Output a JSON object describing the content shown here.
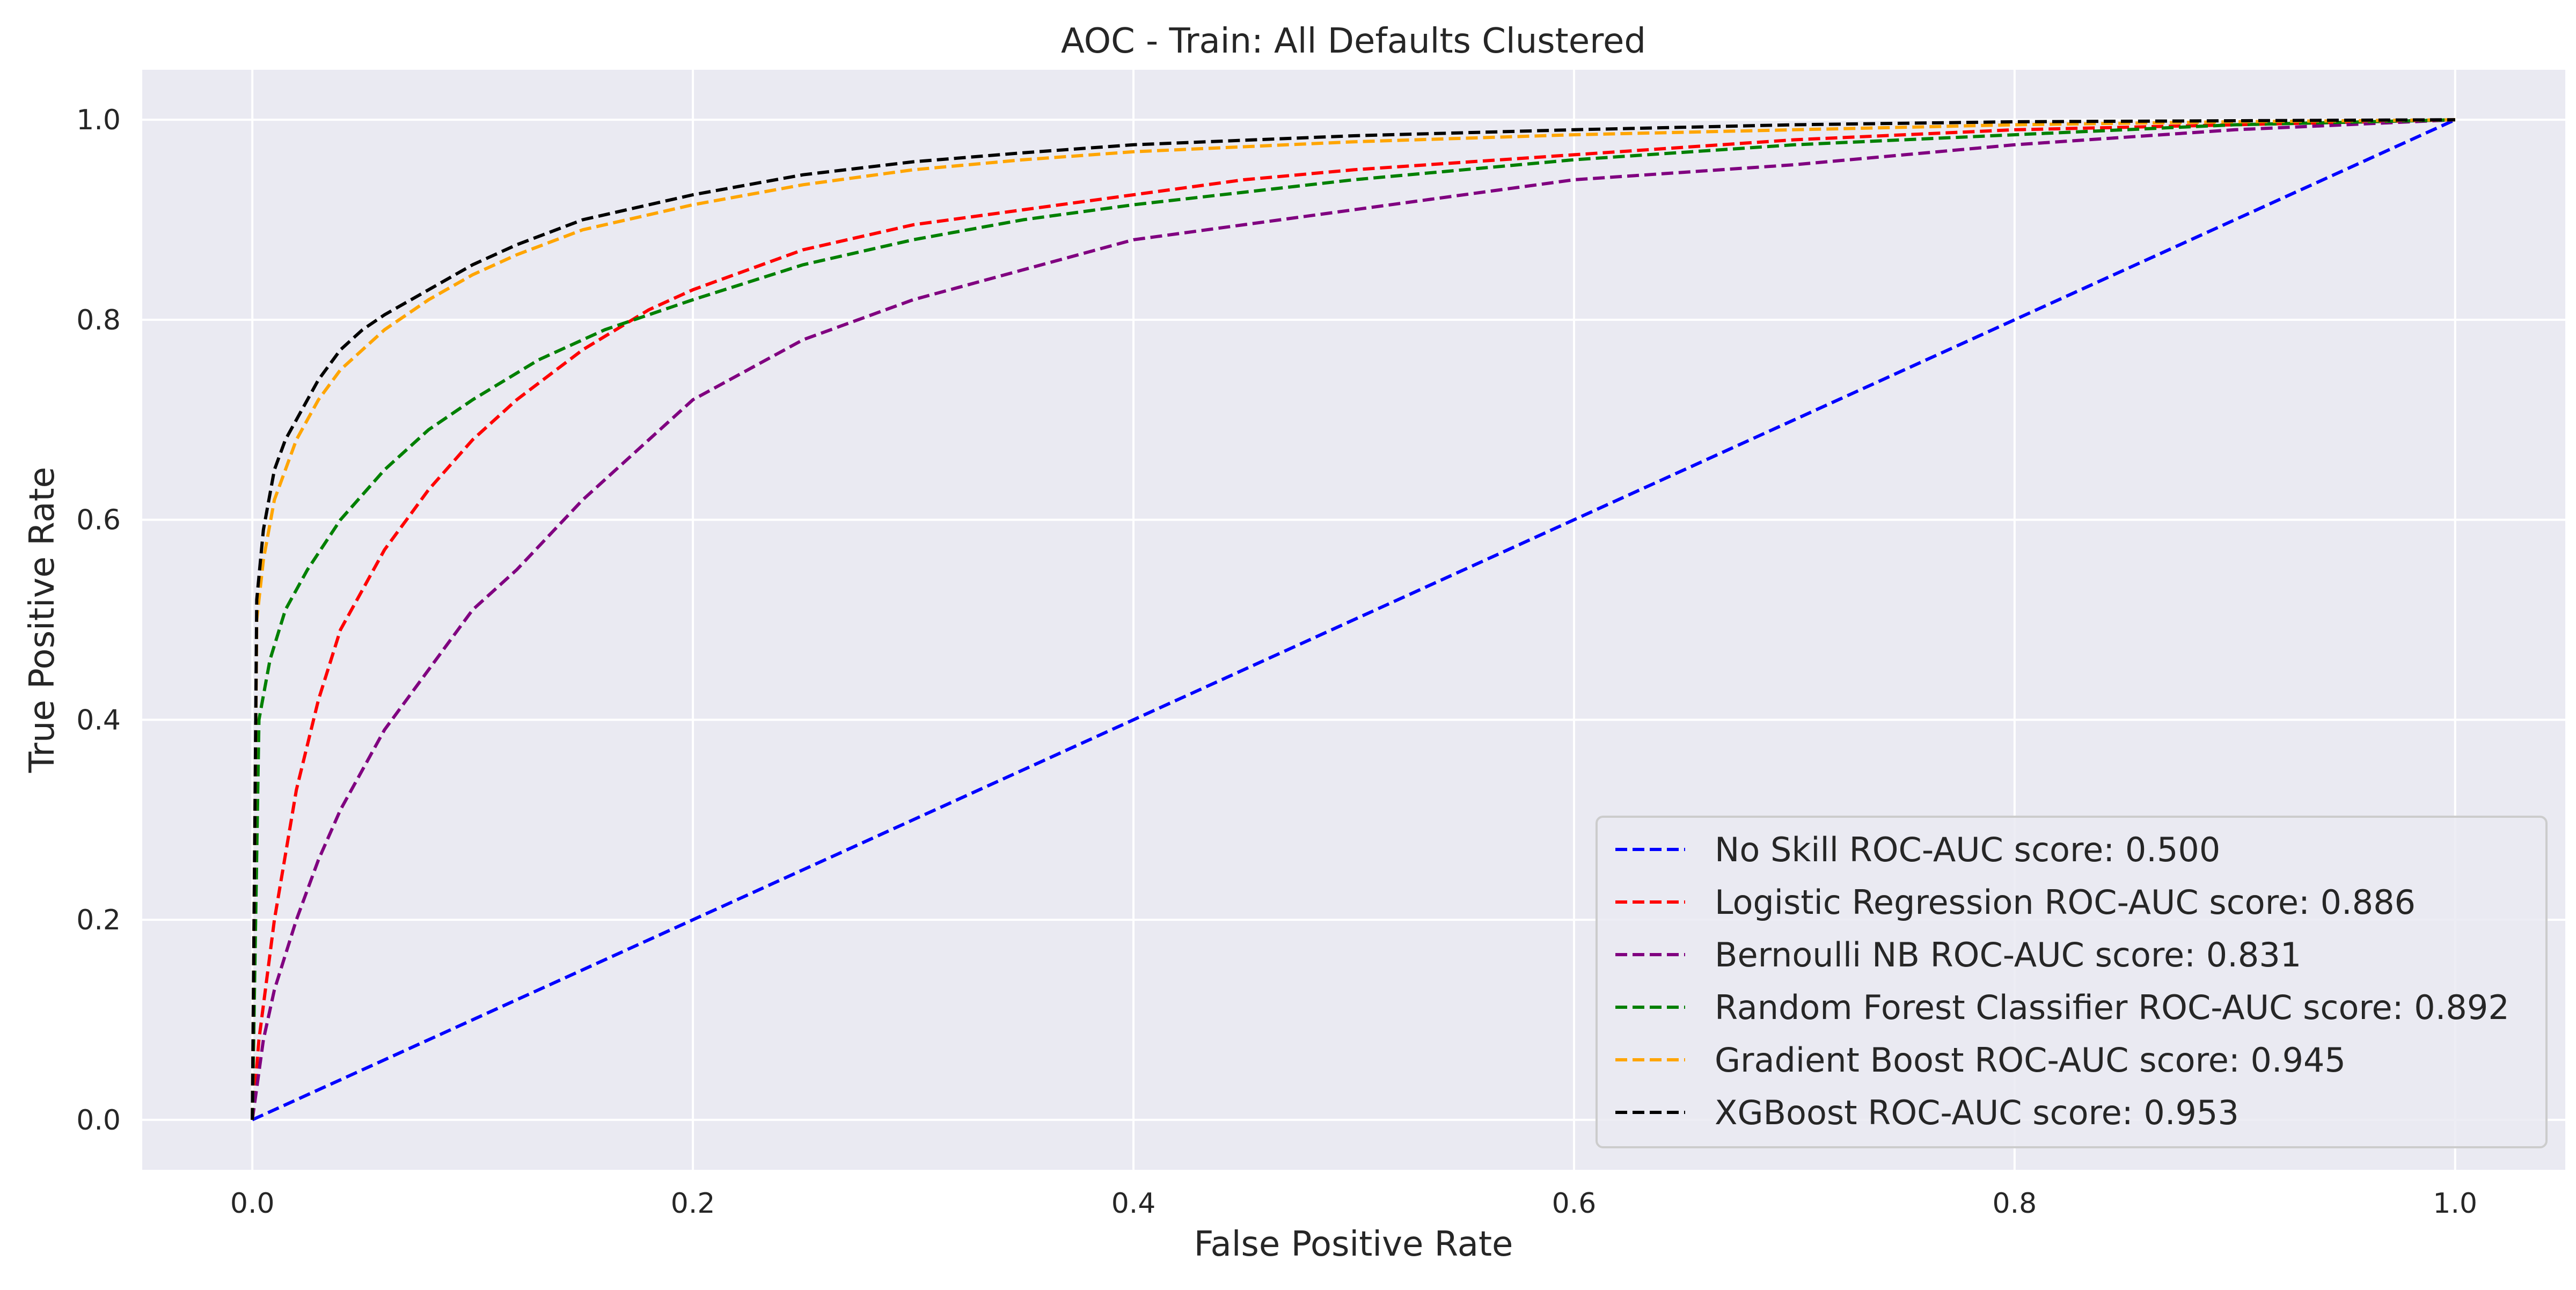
{
  "chart_data": {
    "type": "line",
    "title": "AOC - Train: All Defaults Clustered",
    "xlabel": "False Positive Rate",
    "ylabel": "True Positive Rate",
    "xlim": [
      -0.05,
      1.05
    ],
    "ylim": [
      -0.05,
      1.05
    ],
    "xticks": [
      0.0,
      0.2,
      0.4,
      0.6,
      0.8,
      1.0
    ],
    "yticks": [
      0.0,
      0.2,
      0.4,
      0.6,
      0.8,
      1.0
    ],
    "xtick_labels": [
      "0.0",
      "0.2",
      "0.4",
      "0.6",
      "0.8",
      "1.0"
    ],
    "ytick_labels": [
      "0.0",
      "0.2",
      "0.4",
      "0.6",
      "0.8",
      "1.0"
    ],
    "grid": true,
    "legend_position": "bottom-right",
    "line_style": "dashed",
    "series": [
      {
        "name": "No Skill ROC-AUC score: 0.500",
        "color": "#0000ff",
        "x": [
          0.0,
          1.0
        ],
        "y": [
          0.0,
          1.0
        ]
      },
      {
        "name": "Logistic Regression ROC-AUC score: 0.886",
        "color": "#ff0000",
        "x": [
          0.0,
          0.003,
          0.01,
          0.02,
          0.03,
          0.04,
          0.05,
          0.06,
          0.08,
          0.1,
          0.12,
          0.15,
          0.18,
          0.2,
          0.25,
          0.3,
          0.35,
          0.4,
          0.45,
          0.5,
          0.6,
          0.7,
          0.8,
          0.9,
          1.0
        ],
        "y": [
          0.0,
          0.08,
          0.2,
          0.33,
          0.42,
          0.49,
          0.53,
          0.57,
          0.63,
          0.68,
          0.72,
          0.77,
          0.81,
          0.83,
          0.87,
          0.895,
          0.91,
          0.925,
          0.94,
          0.95,
          0.965,
          0.98,
          0.99,
          0.995,
          1.0
        ]
      },
      {
        "name": "Bernoulli NB ROC-AUC score: 0.831",
        "color": "#800080",
        "x": [
          0.0,
          0.005,
          0.01,
          0.02,
          0.03,
          0.04,
          0.05,
          0.06,
          0.08,
          0.1,
          0.12,
          0.15,
          0.18,
          0.2,
          0.25,
          0.3,
          0.35,
          0.4,
          0.45,
          0.5,
          0.6,
          0.7,
          0.8,
          0.9,
          1.0
        ],
        "y": [
          0.0,
          0.08,
          0.13,
          0.2,
          0.26,
          0.31,
          0.35,
          0.39,
          0.45,
          0.51,
          0.55,
          0.62,
          0.68,
          0.72,
          0.78,
          0.82,
          0.85,
          0.88,
          0.895,
          0.91,
          0.94,
          0.955,
          0.975,
          0.99,
          1.0
        ]
      },
      {
        "name": "Random Forest Classifier ROC-AUC score: 0.892",
        "color": "#008000",
        "x": [
          0.0,
          0.003,
          0.008,
          0.015,
          0.025,
          0.04,
          0.06,
          0.08,
          0.1,
          0.13,
          0.16,
          0.2,
          0.25,
          0.3,
          0.35,
          0.4,
          0.5,
          0.6,
          0.7,
          0.8,
          0.9,
          1.0
        ],
        "y": [
          0.0,
          0.4,
          0.46,
          0.51,
          0.55,
          0.6,
          0.65,
          0.69,
          0.72,
          0.76,
          0.79,
          0.82,
          0.855,
          0.88,
          0.9,
          0.915,
          0.94,
          0.96,
          0.975,
          0.985,
          0.995,
          1.0
        ]
      },
      {
        "name": "Gradient Boost ROC-AUC score: 0.945",
        "color": "#ffa500",
        "x": [
          0.0,
          0.002,
          0.005,
          0.01,
          0.015,
          0.02,
          0.03,
          0.04,
          0.05,
          0.06,
          0.08,
          0.1,
          0.12,
          0.15,
          0.2,
          0.25,
          0.3,
          0.35,
          0.4,
          0.5,
          0.6,
          0.7,
          0.8,
          0.9,
          1.0
        ],
        "y": [
          0.0,
          0.5,
          0.56,
          0.62,
          0.65,
          0.68,
          0.72,
          0.75,
          0.77,
          0.79,
          0.82,
          0.845,
          0.865,
          0.89,
          0.915,
          0.935,
          0.95,
          0.96,
          0.968,
          0.978,
          0.985,
          0.99,
          0.995,
          0.998,
          1.0
        ]
      },
      {
        "name": "XGBoost ROC-AUC score: 0.953",
        "color": "#000000",
        "x": [
          0.0,
          0.002,
          0.005,
          0.01,
          0.015,
          0.02,
          0.03,
          0.04,
          0.05,
          0.06,
          0.08,
          0.1,
          0.12,
          0.15,
          0.2,
          0.25,
          0.3,
          0.35,
          0.4,
          0.5,
          0.6,
          0.7,
          0.8,
          0.9,
          1.0
        ],
        "y": [
          0.0,
          0.52,
          0.59,
          0.65,
          0.68,
          0.7,
          0.74,
          0.77,
          0.79,
          0.805,
          0.83,
          0.855,
          0.875,
          0.9,
          0.925,
          0.945,
          0.958,
          0.967,
          0.975,
          0.984,
          0.99,
          0.995,
          0.998,
          0.999,
          1.0
        ]
      }
    ]
  }
}
